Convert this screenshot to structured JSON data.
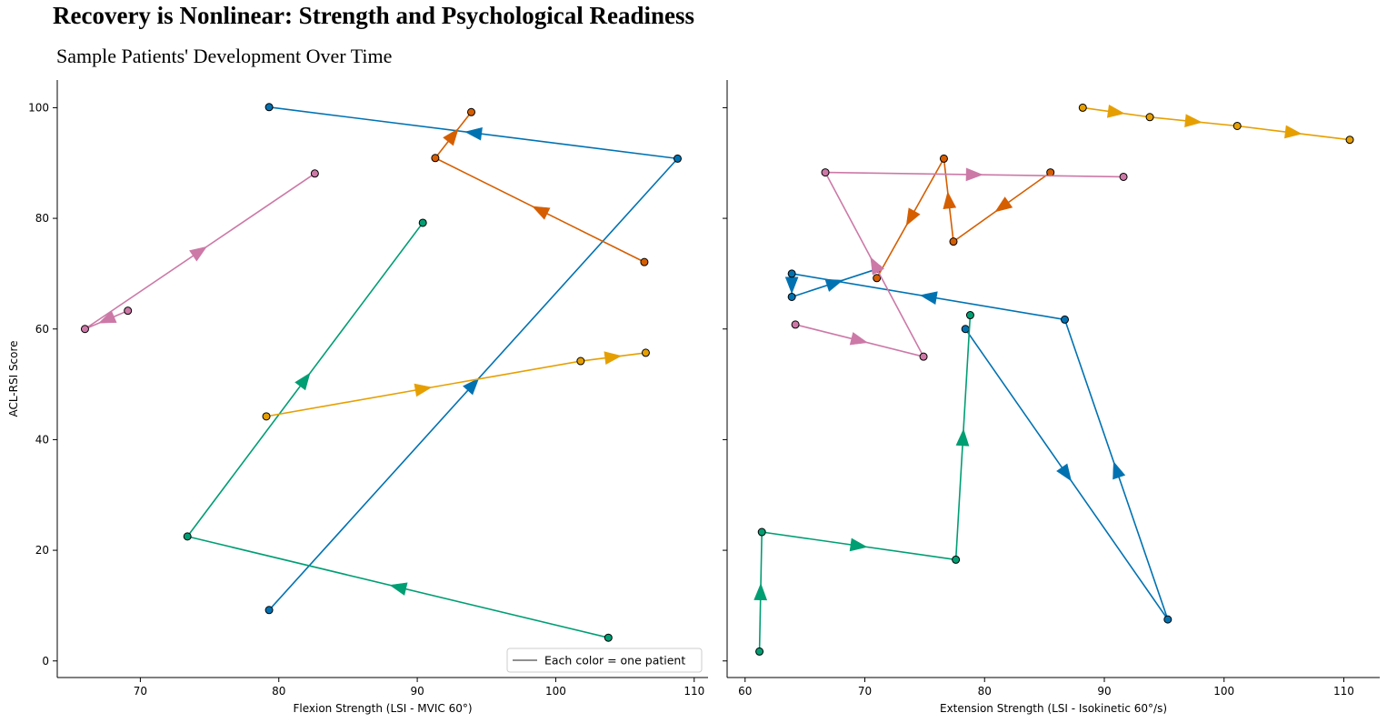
{
  "title": "Recovery is Nonlinear: Strength and Psychological Readiness",
  "subtitle": "Sample Patients' Development Over Time",
  "legend": {
    "label": "Each color = one patient",
    "color": "#808080"
  },
  "chart_data": [
    {
      "type": "line",
      "panel": "left",
      "xlabel": "Flexion Strength (LSI - MVIC 60°)",
      "ylabel": "ACL-RSI Score",
      "xlim": [
        64,
        111
      ],
      "ylim": [
        -3,
        105
      ],
      "xticks": [
        70,
        80,
        90,
        100,
        110
      ],
      "yticks": [
        0,
        20,
        40,
        60,
        80,
        100
      ],
      "series": [
        {
          "color": "#0072B2",
          "points": [
            [
              79.3,
              9.2
            ],
            [
              108.8,
              90.8
            ],
            [
              79.3,
              100.1
            ]
          ]
        },
        {
          "color": "#D55E00",
          "points": [
            [
              106.4,
              72.1
            ],
            [
              91.3,
              90.9
            ],
            [
              93.9,
              99.2
            ]
          ]
        },
        {
          "color": "#009E73",
          "points": [
            [
              103.8,
              4.2
            ],
            [
              73.4,
              22.5
            ],
            [
              90.4,
              79.2
            ]
          ]
        },
        {
          "color": "#E69F00",
          "points": [
            [
              79.1,
              44.2
            ],
            [
              101.8,
              54.2
            ],
            [
              106.5,
              55.7
            ]
          ]
        },
        {
          "color": "#CC79A7",
          "points": [
            [
              69.1,
              63.3
            ],
            [
              66.0,
              60.0
            ],
            [
              82.6,
              88.1
            ]
          ]
        }
      ]
    },
    {
      "type": "line",
      "panel": "right",
      "xlabel": "Extension Strength (LSI - Isokinetic 60°/s)",
      "ylabel": "",
      "xlim": [
        58.5,
        113
      ],
      "ylim": [
        -3,
        105
      ],
      "xticks": [
        60,
        70,
        80,
        90,
        100,
        110
      ],
      "yticks": [
        0,
        20,
        40,
        60,
        80,
        100
      ],
      "series": [
        {
          "color": "#0072B2",
          "points": [
            [
              78.4,
              60.0
            ],
            [
              95.3,
              7.5
            ],
            [
              86.7,
              61.7
            ],
            [
              63.9,
              70.0
            ],
            [
              63.9,
              65.8
            ],
            [
              71.1,
              70.9
            ]
          ]
        },
        {
          "color": "#D55E00",
          "points": [
            [
              85.5,
              88.3
            ],
            [
              77.4,
              75.8
            ],
            [
              76.6,
              90.8
            ],
            [
              71.0,
              69.2
            ]
          ]
        },
        {
          "color": "#009E73",
          "points": [
            [
              61.2,
              1.7
            ],
            [
              61.4,
              23.3
            ],
            [
              77.6,
              18.3
            ],
            [
              78.8,
              62.5
            ]
          ]
        },
        {
          "color": "#E69F00",
          "points": [
            [
              88.2,
              100.0
            ],
            [
              93.8,
              98.3
            ],
            [
              101.1,
              96.7
            ],
            [
              110.5,
              94.2
            ]
          ]
        },
        {
          "color": "#CC79A7",
          "points": [
            [
              64.2,
              60.8
            ],
            [
              74.9,
              55.0
            ],
            [
              66.7,
              88.3
            ],
            [
              91.6,
              87.5
            ]
          ]
        }
      ]
    }
  ]
}
